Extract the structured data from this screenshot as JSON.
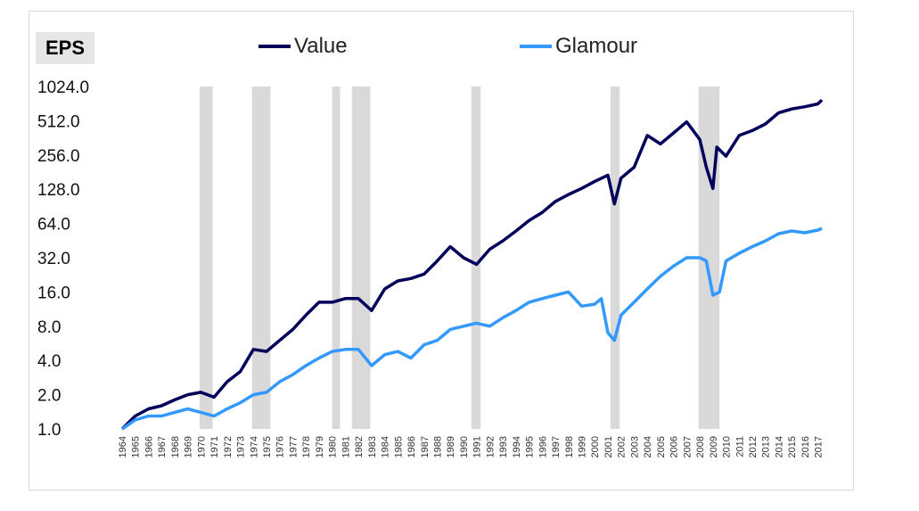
{
  "chart_data": {
    "type": "line",
    "title": "EPS",
    "y_scale": "log2",
    "ylim": [
      1,
      1024
    ],
    "yticks": [
      "1.0",
      "2.0",
      "4.0",
      "8.0",
      "16.0",
      "32.0",
      "64.0",
      "128.0",
      "256.0",
      "512.0",
      "1024.0"
    ],
    "xlim": [
      1964,
      2017.5
    ],
    "xticks": [
      "1964",
      "1965",
      "1966",
      "1967",
      "1968",
      "1969",
      "1970",
      "1971",
      "1972",
      "1973",
      "1974",
      "1975",
      "1976",
      "1977",
      "1978",
      "1979",
      "1980",
      "1981",
      "1982",
      "1983",
      "1984",
      "1985",
      "1986",
      "1987",
      "1988",
      "1989",
      "1990",
      "1991",
      "1992",
      "1993",
      "1994",
      "1995",
      "1996",
      "1997",
      "1998",
      "1999",
      "2000",
      "2001",
      "2002",
      "2003",
      "2004",
      "2005",
      "2006",
      "2007",
      "2008",
      "2009",
      "2010",
      "2011",
      "2012",
      "2013",
      "2014",
      "2015",
      "2016",
      "2017"
    ],
    "legend_position": "top",
    "recession_bands": [
      [
        1969.9,
        1970.9
      ],
      [
        1973.9,
        1975.3
      ],
      [
        1980.0,
        1980.6
      ],
      [
        1981.5,
        1982.9
      ],
      [
        1990.6,
        1991.3
      ],
      [
        2001.2,
        2001.9
      ],
      [
        2007.9,
        2009.5
      ]
    ],
    "series": [
      {
        "name": "Value",
        "color": "#00005a",
        "x": [
          1964.0,
          1965.0,
          1966.0,
          1967.0,
          1968.0,
          1969.0,
          1970.0,
          1971.0,
          1972.0,
          1973.0,
          1974.0,
          1975.0,
          1976.0,
          1977.0,
          1978.0,
          1979.0,
          1980.0,
          1981.0,
          1982.0,
          1983.0,
          1984.0,
          1985.0,
          1986.0,
          1987.0,
          1988.0,
          1989.0,
          1990.0,
          1991.0,
          1992.0,
          1993.0,
          1994.0,
          1995.0,
          1996.0,
          1997.0,
          1998.0,
          1999.0,
          2000.0,
          2001.0,
          2001.5,
          2002.0,
          2003.0,
          2004.0,
          2005.0,
          2006.0,
          2007.0,
          2007.5,
          2008.0,
          2008.5,
          2009.0,
          2009.3,
          2010.0,
          2011.0,
          2012.0,
          2013.0,
          2014.0,
          2015.0,
          2016.0,
          2017.0,
          2017.3
        ],
        "y": [
          1.0,
          1.3,
          1.5,
          1.6,
          1.8,
          2.0,
          2.1,
          1.9,
          2.6,
          3.2,
          5.0,
          4.8,
          6.0,
          7.5,
          10.0,
          13.0,
          13.0,
          14.0,
          14.0,
          11.0,
          17.0,
          20.0,
          21.0,
          23.0,
          30.0,
          40.0,
          32.0,
          28.0,
          38.0,
          45.0,
          55.0,
          68.0,
          80.0,
          100.0,
          115.0,
          130.0,
          150.0,
          170.0,
          95.0,
          160.0,
          200.0,
          380.0,
          320.0,
          400.0,
          500.0,
          420.0,
          350.0,
          200.0,
          130.0,
          300.0,
          250.0,
          380.0,
          420.0,
          480.0,
          600.0,
          650.0,
          680.0,
          720.0,
          780.0
        ]
      },
      {
        "name": "Glamour",
        "color": "#3399ff",
        "x": [
          1964.0,
          1965.0,
          1966.0,
          1967.0,
          1968.0,
          1969.0,
          1970.0,
          1971.0,
          1972.0,
          1973.0,
          1974.0,
          1975.0,
          1976.0,
          1977.0,
          1978.0,
          1979.0,
          1980.0,
          1981.0,
          1982.0,
          1983.0,
          1984.0,
          1985.0,
          1986.0,
          1987.0,
          1988.0,
          1989.0,
          1990.0,
          1991.0,
          1992.0,
          1993.0,
          1994.0,
          1995.0,
          1996.0,
          1997.0,
          1998.0,
          1999.0,
          2000.0,
          2000.5,
          2001.0,
          2001.5,
          2002.0,
          2003.0,
          2004.0,
          2005.0,
          2006.0,
          2007.0,
          2008.0,
          2008.5,
          2009.0,
          2009.5,
          2010.0,
          2011.0,
          2012.0,
          2013.0,
          2014.0,
          2015.0,
          2016.0,
          2017.0,
          2017.3
        ],
        "y": [
          1.0,
          1.2,
          1.3,
          1.3,
          1.4,
          1.5,
          1.4,
          1.3,
          1.5,
          1.7,
          2.0,
          2.1,
          2.6,
          3.0,
          3.6,
          4.2,
          4.8,
          5.0,
          5.0,
          3.6,
          4.5,
          4.8,
          4.2,
          5.5,
          6.0,
          7.5,
          8.0,
          8.5,
          8.0,
          9.5,
          11.0,
          13.0,
          14.0,
          15.0,
          16.0,
          12.0,
          12.5,
          14.0,
          7.0,
          6.0,
          10.0,
          13.0,
          17.0,
          22.0,
          27.0,
          32.0,
          32.0,
          30.0,
          15.0,
          16.0,
          30.0,
          35.0,
          40.0,
          45.0,
          52.0,
          55.0,
          53.0,
          56.0,
          58.0
        ]
      }
    ]
  }
}
